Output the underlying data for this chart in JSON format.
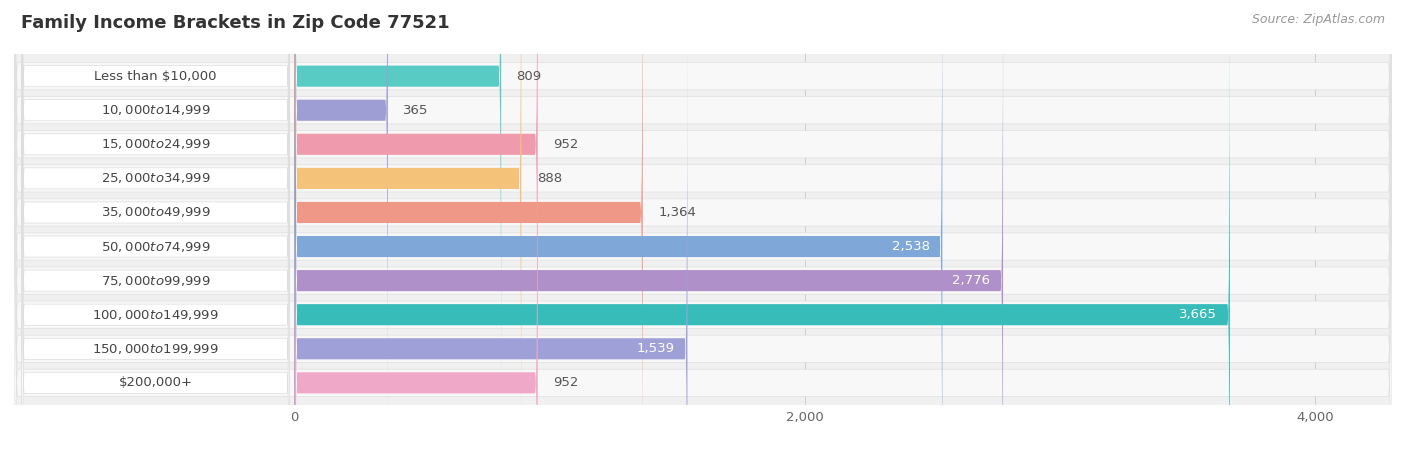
{
  "title": "Family Income Brackets in Zip Code 77521",
  "source": "Source: ZipAtlas.com",
  "categories": [
    "Less than $10,000",
    "$10,000 to $14,999",
    "$15,000 to $24,999",
    "$25,000 to $34,999",
    "$35,000 to $49,999",
    "$50,000 to $74,999",
    "$75,000 to $99,999",
    "$100,000 to $149,999",
    "$150,000 to $199,999",
    "$200,000+"
  ],
  "values": [
    809,
    365,
    952,
    888,
    1364,
    2538,
    2776,
    3665,
    1539,
    952
  ],
  "bar_colors": [
    "#59CBC5",
    "#9E9ED4",
    "#F09AAD",
    "#F5C27A",
    "#EF9888",
    "#7FA8D8",
    "#B090C8",
    "#38BCBA",
    "#A0A0D8",
    "#F0A8C8"
  ],
  "value_threshold": 1500,
  "xlim_min": -1100,
  "xlim_max": 4300,
  "xticks": [
    0,
    2000,
    4000
  ],
  "title_fontsize": 13,
  "label_fontsize": 9.5,
  "value_fontsize": 9.5,
  "source_fontsize": 9
}
